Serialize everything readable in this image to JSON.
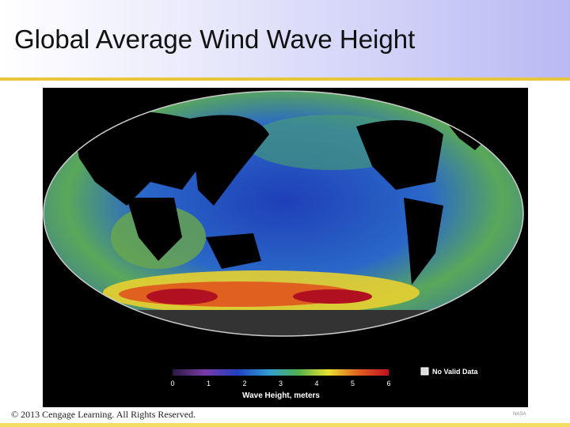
{
  "header": {
    "title": "Global Average Wind Wave Height"
  },
  "figure": {
    "colorbar": {
      "ticks": [
        0,
        1,
        2,
        3,
        4,
        5,
        6
      ],
      "label": "Wave Height, meters"
    },
    "legend": "No Valid Data",
    "credit": "NASA"
  },
  "footer": {
    "copyright": "© 2013 Cengage Learning. All Rights Reserved."
  }
}
